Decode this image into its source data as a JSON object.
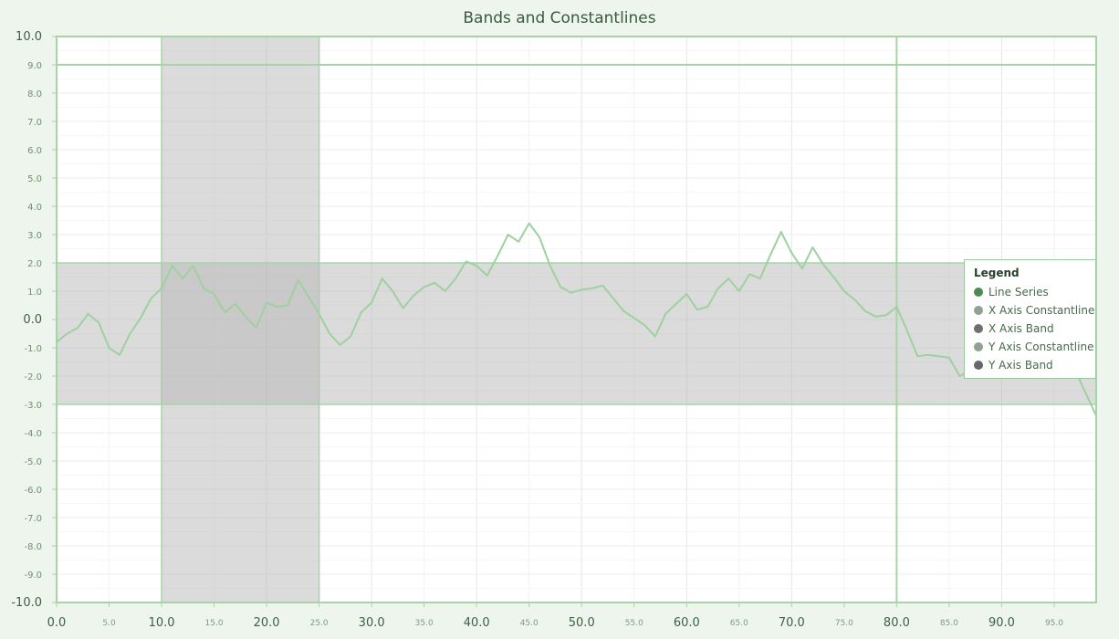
{
  "chart_data": {
    "type": "line",
    "title": "Bands and Constantlines",
    "xlim": [
      0,
      99
    ],
    "ylim": [
      -10,
      10
    ],
    "x_ticks_major": [
      "0.0",
      "10.0",
      "20.0",
      "30.0",
      "40.0",
      "50.0",
      "60.0",
      "70.0",
      "80.0",
      "90.0"
    ],
    "x_ticks_minor": [
      "5.0",
      "15.0",
      "25.0",
      "35.0",
      "45.0",
      "55.0",
      "65.0",
      "75.0",
      "85.0",
      "95.0"
    ],
    "y_ticks": [
      "10.0",
      "9.0",
      "8.0",
      "7.0",
      "6.0",
      "5.0",
      "4.0",
      "3.0",
      "2.0",
      "1.0",
      "0.0",
      "-1.0",
      "-2.0",
      "-3.0",
      "-4.0",
      "-5.0",
      "-6.0",
      "-7.0",
      "-8.0",
      "-9.0",
      "-10.0"
    ],
    "grid": true,
    "series": [
      {
        "name": "Line Series",
        "color": "#9fd09f",
        "x": [
          0,
          1,
          2,
          3,
          4,
          5,
          6,
          7,
          8,
          9,
          10,
          11,
          12,
          13,
          14,
          15,
          16,
          17,
          18,
          19,
          20,
          21,
          22,
          23,
          24,
          25,
          26,
          27,
          28,
          29,
          30,
          31,
          32,
          33,
          34,
          35,
          36,
          37,
          38,
          39,
          40,
          41,
          42,
          43,
          44,
          45,
          46,
          47,
          48,
          49,
          50,
          51,
          52,
          53,
          54,
          55,
          56,
          57,
          58,
          59,
          60,
          61,
          62,
          63,
          64,
          65,
          66,
          67,
          68,
          69,
          70,
          71,
          72,
          73,
          74,
          75,
          76,
          77,
          78,
          79,
          80,
          81,
          82,
          83,
          84,
          85,
          86,
          87,
          88,
          89,
          90,
          91,
          92,
          93,
          94,
          95,
          96,
          97,
          98,
          99
        ],
        "values": [
          -0.8,
          -0.5,
          -0.3,
          0.2,
          -0.1,
          -1.0,
          -1.25,
          -0.5,
          0.05,
          0.75,
          1.1,
          1.9,
          1.45,
          1.9,
          1.1,
          0.9,
          0.25,
          0.55,
          0.1,
          -0.3,
          0.6,
          0.45,
          0.5,
          1.4,
          0.8,
          0.2,
          -0.5,
          -0.9,
          -0.6,
          0.25,
          0.6,
          1.45,
          1.0,
          0.4,
          0.85,
          1.15,
          1.3,
          1.0,
          1.45,
          2.05,
          1.9,
          1.55,
          2.25,
          3.0,
          2.75,
          3.4,
          2.9,
          1.9,
          1.15,
          0.95,
          1.05,
          1.1,
          1.2,
          0.75,
          0.3,
          0.05,
          -0.2,
          -0.6,
          0.2,
          0.55,
          0.9,
          0.35,
          0.45,
          1.1,
          1.45,
          1.0,
          1.6,
          1.45,
          2.3,
          3.1,
          2.35,
          1.8,
          2.55,
          1.95,
          1.5,
          1.0,
          0.7,
          0.3,
          0.1,
          0.15,
          0.45,
          -0.4,
          -1.3,
          -1.25,
          -1.3,
          -1.35,
          -2.0,
          -1.8,
          -1.9,
          -1.5,
          -1.6,
          -1.45,
          -1.55,
          -1.7,
          -1.3,
          -1.45,
          -1.5,
          -1.8,
          -2.6,
          -3.4
        ]
      }
    ],
    "constant_lines": [
      {
        "axis": "x",
        "value": 80,
        "color": "#a6d4a6"
      },
      {
        "axis": "y",
        "value": 9,
        "color": "#a6d4a6"
      }
    ],
    "bands": [
      {
        "axis": "x",
        "from": 10,
        "to": 25,
        "color": "#b8b8b8"
      },
      {
        "axis": "y",
        "from": -3,
        "to": 2,
        "color": "#b8b8b8"
      }
    ],
    "legend": {
      "title": "Legend",
      "placement": "right",
      "items": [
        {
          "label": "Line Series",
          "color": "#4e8a55"
        },
        {
          "label": "X Axis Constantline",
          "color": "#8fa291"
        },
        {
          "label": "X Axis Band",
          "color": "#6f6f6f"
        },
        {
          "label": "Y Axis Constantline",
          "color": "#8fa291"
        },
        {
          "label": "Y Axis Band",
          "color": "#666666"
        }
      ]
    }
  }
}
